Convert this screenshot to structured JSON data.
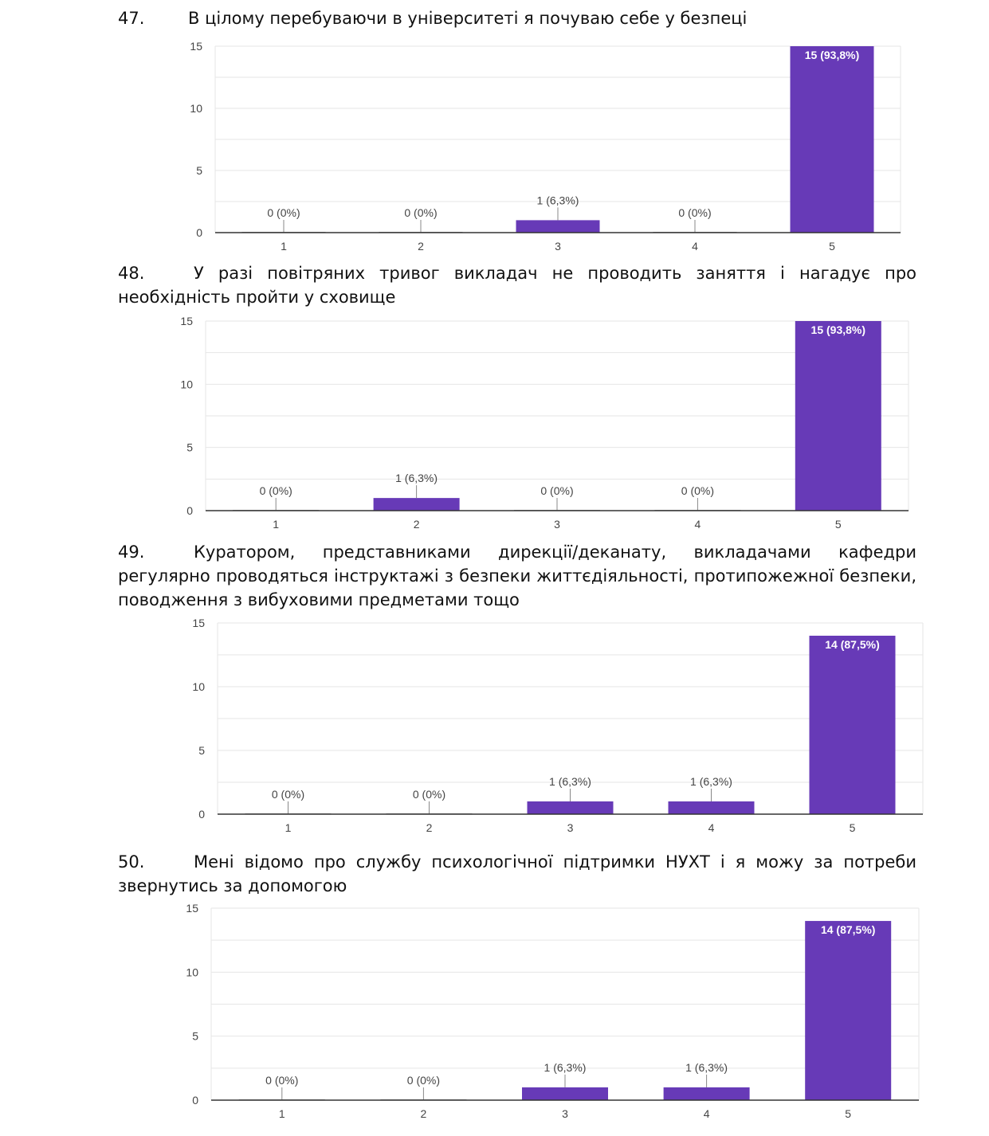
{
  "questions": [
    {
      "number": "47.",
      "text": "В цілому перебуваючи в університеті я почуваю себе у безпеці"
    },
    {
      "number": "48.",
      "text": "У разі повітряних тривог викладач не проводить заняття і нагадує про необхідність пройти у сховище"
    },
    {
      "number": "49.",
      "text": "Куратором, представниками дирекції/деканату, викладачами кафедри регулярно проводяться інструктажі з безпеки життєдіяльності, протипожежної безпеки, поводження з вибуховими предметами тощо"
    },
    {
      "number": "50.",
      "text": "Мені відомо про службу психологічної підтримки НУХТ і я можу за потреби звернутись за допомогою"
    }
  ],
  "colors": {
    "bar": "#673ab7",
    "grid": "#e6e6e6",
    "axis": "#333333",
    "label": "#444444",
    "inner_label": "#ffffff"
  },
  "chart_data": [
    {
      "type": "bar",
      "categories": [
        "1",
        "2",
        "3",
        "4",
        "5"
      ],
      "values": [
        0,
        0,
        1,
        0,
        15
      ],
      "labels": [
        "0 (0%)",
        "0 (0%)",
        "1 (6,3%)",
        "0 (0%)",
        "15 (93,8%)"
      ],
      "yticks": [
        "0",
        "5",
        "10",
        "15"
      ],
      "ylim": [
        0,
        15
      ]
    },
    {
      "type": "bar",
      "categories": [
        "1",
        "2",
        "3",
        "4",
        "5"
      ],
      "values": [
        0,
        1,
        0,
        0,
        15
      ],
      "labels": [
        "0 (0%)",
        "1 (6,3%)",
        "0 (0%)",
        "0 (0%)",
        "15 (93,8%)"
      ],
      "yticks": [
        "0",
        "5",
        "10",
        "15"
      ],
      "ylim": [
        0,
        15
      ]
    },
    {
      "type": "bar",
      "categories": [
        "1",
        "2",
        "3",
        "4",
        "5"
      ],
      "values": [
        0,
        0,
        1,
        1,
        14
      ],
      "labels": [
        "0 (0%)",
        "0 (0%)",
        "1 (6,3%)",
        "1 (6,3%)",
        "14 (87,5%)"
      ],
      "yticks": [
        "0",
        "5",
        "10",
        "15"
      ],
      "ylim": [
        0,
        15
      ]
    },
    {
      "type": "bar",
      "categories": [
        "1",
        "2",
        "3",
        "4",
        "5"
      ],
      "values": [
        0,
        0,
        1,
        1,
        14
      ],
      "labels": [
        "0 (0%)",
        "0 (0%)",
        "1 (6,3%)",
        "1 (6,3%)",
        "14 (87,5%)"
      ],
      "yticks": [
        "0",
        "5",
        "10",
        "15"
      ],
      "ylim": [
        0,
        15
      ]
    }
  ]
}
